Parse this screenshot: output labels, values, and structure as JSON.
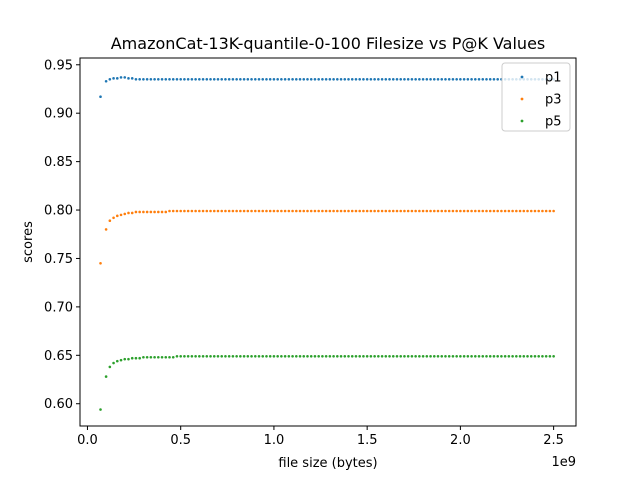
{
  "chart_data": {
    "type": "scatter",
    "title": "AmazonCat-13K-quantile-0-100 Filesize vs P@K Values",
    "xlabel": "file size (bytes)",
    "ylabel": "scores",
    "x_offset_label": "1e9",
    "xlim": [
      -0.04,
      2.62
    ],
    "ylim": [
      0.577,
      0.957
    ],
    "x_ticks": [
      0.0,
      0.5,
      1.0,
      1.5,
      2.0,
      2.5
    ],
    "x_tick_labels": [
      "0.0",
      "0.5",
      "1.0",
      "1.5",
      "2.0",
      "2.5"
    ],
    "y_ticks": [
      0.6,
      0.65,
      0.7,
      0.75,
      0.8,
      0.85,
      0.9,
      0.95
    ],
    "y_tick_labels": [
      "0.60",
      "0.65",
      "0.70",
      "0.75",
      "0.80",
      "0.85",
      "0.90",
      "0.95"
    ],
    "legend_position": "top-right",
    "x": [
      0.07,
      0.1,
      0.12,
      0.14,
      0.16,
      0.18,
      0.2,
      0.22,
      0.24,
      0.26,
      0.28,
      0.3,
      0.32,
      0.34,
      0.36,
      0.38,
      0.4,
      0.42,
      0.44,
      0.46,
      0.48,
      0.5,
      0.52,
      0.54,
      0.56,
      0.58,
      0.6,
      0.62,
      0.64,
      0.66,
      0.68,
      0.7,
      0.72,
      0.74,
      0.76,
      0.78,
      0.8,
      0.82,
      0.84,
      0.86,
      0.88,
      0.9,
      0.92,
      0.94,
      0.96,
      0.98,
      1.0,
      1.02,
      1.04,
      1.06,
      1.08,
      1.1,
      1.12,
      1.14,
      1.16,
      1.18,
      1.2,
      1.22,
      1.24,
      1.26,
      1.28,
      1.3,
      1.32,
      1.34,
      1.36,
      1.38,
      1.4,
      1.42,
      1.44,
      1.46,
      1.48,
      1.5,
      1.52,
      1.54,
      1.56,
      1.58,
      1.6,
      1.62,
      1.64,
      1.66,
      1.68,
      1.7,
      1.72,
      1.74,
      1.76,
      1.78,
      1.8,
      1.82,
      1.84,
      1.86,
      1.88,
      1.9,
      1.92,
      1.94,
      1.96,
      1.98,
      2.0,
      2.02,
      2.04,
      2.06,
      2.08,
      2.1,
      2.12,
      2.14,
      2.16,
      2.18,
      2.2,
      2.22,
      2.24,
      2.26,
      2.28,
      2.3,
      2.32,
      2.34,
      2.36,
      2.38,
      2.4,
      2.42,
      2.44,
      2.46,
      2.48,
      2.5
    ],
    "series": [
      {
        "name": "p1",
        "color": "#1f77b4",
        "values": [
          0.917,
          0.933,
          0.935,
          0.936,
          0.936,
          0.937,
          0.937,
          0.936,
          0.936,
          0.935,
          0.935,
          0.935,
          0.935,
          0.935,
          0.935,
          0.935,
          0.935,
          0.935,
          0.935,
          0.935,
          0.935,
          0.935,
          0.935,
          0.935,
          0.935,
          0.935,
          0.935,
          0.935,
          0.935,
          0.935,
          0.935,
          0.935,
          0.935,
          0.935,
          0.935,
          0.935,
          0.935,
          0.935,
          0.935,
          0.935,
          0.935,
          0.935,
          0.935,
          0.935,
          0.935,
          0.935,
          0.935,
          0.935,
          0.935,
          0.935,
          0.935,
          0.935,
          0.935,
          0.935,
          0.935,
          0.935,
          0.935,
          0.935,
          0.935,
          0.935,
          0.935,
          0.935,
          0.935,
          0.935,
          0.935,
          0.935,
          0.935,
          0.935,
          0.935,
          0.935,
          0.935,
          0.935,
          0.935,
          0.935,
          0.935,
          0.935,
          0.935,
          0.935,
          0.935,
          0.935,
          0.935,
          0.935,
          0.935,
          0.935,
          0.935,
          0.935,
          0.935,
          0.935,
          0.935,
          0.935,
          0.935,
          0.935,
          0.935,
          0.935,
          0.935,
          0.935,
          0.935,
          0.935,
          0.935,
          0.935,
          0.935,
          0.935,
          0.935,
          0.935,
          0.935,
          0.935,
          0.935,
          0.935,
          0.935,
          0.935,
          0.935,
          0.935,
          0.935,
          0.935,
          0.935,
          0.935,
          0.935,
          0.935,
          0.935,
          0.935,
          0.935,
          0.935
        ]
      },
      {
        "name": "p3",
        "color": "#ff7f0e",
        "values": [
          0.745,
          0.78,
          0.789,
          0.792,
          0.794,
          0.795,
          0.796,
          0.797,
          0.797,
          0.798,
          0.798,
          0.798,
          0.798,
          0.798,
          0.798,
          0.798,
          0.798,
          0.798,
          0.799,
          0.799,
          0.799,
          0.799,
          0.799,
          0.799,
          0.799,
          0.799,
          0.799,
          0.799,
          0.799,
          0.799,
          0.799,
          0.799,
          0.799,
          0.799,
          0.799,
          0.799,
          0.799,
          0.799,
          0.799,
          0.799,
          0.799,
          0.799,
          0.799,
          0.799,
          0.799,
          0.799,
          0.799,
          0.799,
          0.799,
          0.799,
          0.799,
          0.799,
          0.799,
          0.799,
          0.799,
          0.799,
          0.799,
          0.799,
          0.799,
          0.799,
          0.799,
          0.799,
          0.799,
          0.799,
          0.799,
          0.799,
          0.799,
          0.799,
          0.799,
          0.799,
          0.799,
          0.799,
          0.799,
          0.799,
          0.799,
          0.799,
          0.799,
          0.799,
          0.799,
          0.799,
          0.799,
          0.799,
          0.799,
          0.799,
          0.799,
          0.799,
          0.799,
          0.799,
          0.799,
          0.799,
          0.799,
          0.799,
          0.799,
          0.799,
          0.799,
          0.799,
          0.799,
          0.799,
          0.799,
          0.799,
          0.799,
          0.799,
          0.799,
          0.799,
          0.799,
          0.799,
          0.799,
          0.799,
          0.799,
          0.799,
          0.799,
          0.799,
          0.799,
          0.799,
          0.799,
          0.799,
          0.799,
          0.799,
          0.799,
          0.799,
          0.799,
          0.799
        ]
      },
      {
        "name": "p5",
        "color": "#2ca02c",
        "values": [
          0.594,
          0.628,
          0.638,
          0.642,
          0.644,
          0.645,
          0.646,
          0.646,
          0.647,
          0.647,
          0.647,
          0.648,
          0.648,
          0.648,
          0.648,
          0.648,
          0.648,
          0.648,
          0.648,
          0.648,
          0.649,
          0.649,
          0.649,
          0.649,
          0.649,
          0.649,
          0.649,
          0.649,
          0.649,
          0.649,
          0.649,
          0.649,
          0.649,
          0.649,
          0.649,
          0.649,
          0.649,
          0.649,
          0.649,
          0.649,
          0.649,
          0.649,
          0.649,
          0.649,
          0.649,
          0.649,
          0.649,
          0.649,
          0.649,
          0.649,
          0.649,
          0.649,
          0.649,
          0.649,
          0.649,
          0.649,
          0.649,
          0.649,
          0.649,
          0.649,
          0.649,
          0.649,
          0.649,
          0.649,
          0.649,
          0.649,
          0.649,
          0.649,
          0.649,
          0.649,
          0.649,
          0.649,
          0.649,
          0.649,
          0.649,
          0.649,
          0.649,
          0.649,
          0.649,
          0.649,
          0.649,
          0.649,
          0.649,
          0.649,
          0.649,
          0.649,
          0.649,
          0.649,
          0.649,
          0.649,
          0.649,
          0.649,
          0.649,
          0.649,
          0.649,
          0.649,
          0.649,
          0.649,
          0.649,
          0.649,
          0.649,
          0.649,
          0.649,
          0.649,
          0.649,
          0.649,
          0.649,
          0.649,
          0.649,
          0.649,
          0.649,
          0.649,
          0.649,
          0.649,
          0.649,
          0.649,
          0.649,
          0.649,
          0.649,
          0.649,
          0.649,
          0.649
        ]
      }
    ]
  }
}
